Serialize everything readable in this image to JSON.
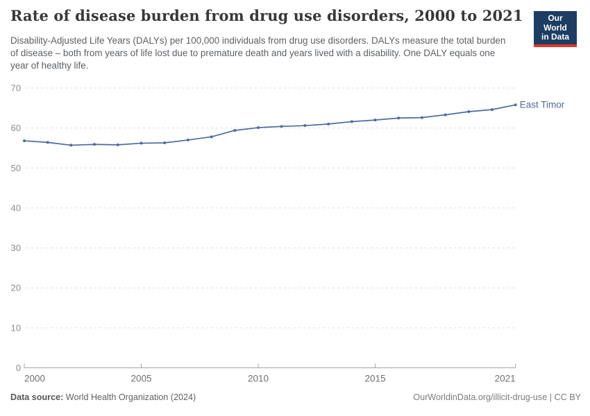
{
  "header": {
    "title": "Rate of disease burden from drug use disorders, 2000 to 2021",
    "subtitle": "Disability-Adjusted Life Years (DALYs) per 100,000 individuals from drug use disorders. DALYs measure the total burden of disease – both from years of life lost due to premature death and years lived with a disability. One DALY equals one year of healthy life.",
    "logo": {
      "line1": "Our World",
      "line2": "in Data"
    }
  },
  "chart_data": {
    "type": "line",
    "title": "Rate of disease burden from drug use disorders, 2000 to 2021",
    "x": [
      2000,
      2001,
      2002,
      2003,
      2004,
      2005,
      2006,
      2007,
      2008,
      2009,
      2010,
      2011,
      2012,
      2013,
      2014,
      2015,
      2016,
      2017,
      2018,
      2019,
      2020,
      2021
    ],
    "series": [
      {
        "name": "East Timor",
        "color": "#4c6a9c",
        "values": [
          56.8,
          56.4,
          55.7,
          55.9,
          55.8,
          56.2,
          56.3,
          57.0,
          57.8,
          59.4,
          60.1,
          60.4,
          60.6,
          61.0,
          61.6,
          62.0,
          62.5,
          62.6,
          63.3,
          64.1,
          64.6,
          65.8
        ]
      }
    ],
    "xlim": [
      2000,
      2021
    ],
    "ylim": [
      0,
      70
    ],
    "y_ticks": [
      0,
      10,
      20,
      30,
      40,
      50,
      60,
      70
    ],
    "x_ticks": [
      2000,
      2005,
      2010,
      2015,
      2021
    ],
    "xlabel": "",
    "ylabel": "",
    "grid": "horizontal-dashed",
    "legend_position": "end-of-line"
  },
  "colors": {
    "line": "#4c6a9c",
    "gridline": "#dcdcdc",
    "axis_line": "#a3a3a3",
    "y_tick_label": "#8c8c8c",
    "x_tick_label": "#6e6e6e",
    "series_label": "#4c6a9c",
    "logo_background": "#1d3d63",
    "logo_stripe": "#dc3a2d"
  },
  "footer": {
    "source_label": "Data source:",
    "source_value": "World Health Organization (2024)",
    "right_text": "OurWorldinData.org/illicit-drug-use | CC BY"
  }
}
